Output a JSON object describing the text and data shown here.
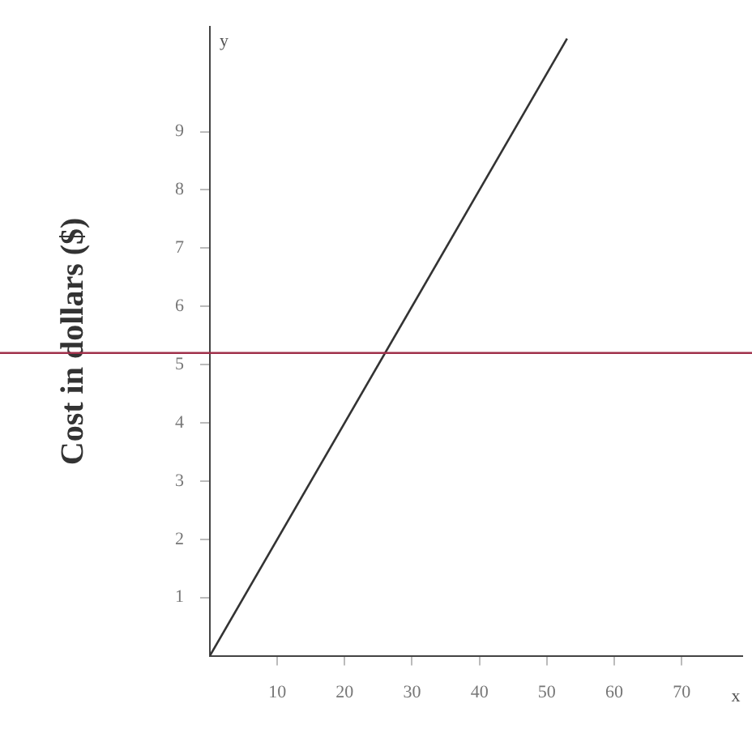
{
  "chart_data": {
    "type": "line",
    "xlabel": "x",
    "ylabel": "Cost in dollars ($)",
    "annotations": [
      "y"
    ],
    "x": [
      0,
      53
    ],
    "series": [
      {
        "color": "#333333",
        "values": [
          0,
          10.6
        ]
      }
    ],
    "xlim": [
      0,
      79
    ],
    "ylim": [
      0,
      10.8
    ],
    "xticks": [
      10,
      20,
      30,
      40,
      50,
      60,
      70
    ],
    "yticks": [
      1,
      2,
      3,
      4,
      5,
      6,
      7,
      8,
      9
    ],
    "ref_lines": [
      {
        "axis": "y",
        "value": 5.2,
        "color": "#a0304a"
      }
    ],
    "grid": false,
    "legend": false,
    "marker": "none",
    "line_style": "solid"
  }
}
